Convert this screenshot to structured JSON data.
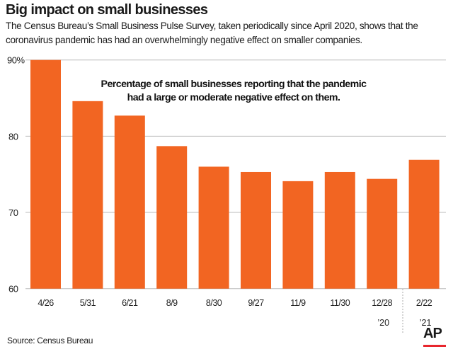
{
  "title": "Big impact on small businesses",
  "subtitle": "The Census Bureau’s Small Business Pulse Survey, taken periodically since April 2020, shows that the coronavirus pandemic has had an overwhelmingly negative effect on smaller companies.",
  "source": "Source: Census Bureau",
  "logo": "AP",
  "colors": {
    "bar": "#f26522",
    "grid": "#bbbbbb",
    "logo_accent": "#e8262d"
  },
  "chart_data": {
    "type": "bar",
    "annotation": "Percentage of small businesses reporting that the pandemic had a large or moderate negative effect on them.",
    "annotation_lines": [
      "Percentage of small businesses reporting that the pandemic",
      "had a large or moderate negative effect on them."
    ],
    "categories": [
      "4/26",
      "5/31",
      "6/21",
      "8/9",
      "8/30",
      "9/27",
      "11/9",
      "11/30",
      "12/28",
      "2/22"
    ],
    "year_labels": [
      {
        "after_category": "12/28",
        "label": "’20"
      },
      {
        "after_category": "2/22",
        "label": "’21"
      }
    ],
    "values": [
      90.0,
      84.6,
      82.7,
      78.7,
      76.0,
      75.3,
      74.1,
      75.3,
      74.4,
      76.9
    ],
    "ylim": [
      60,
      90
    ],
    "yticks": [
      60,
      70,
      80,
      90
    ],
    "ytick_labels": [
      "60",
      "70",
      "80",
      "90%"
    ],
    "grid": true,
    "xlabel": "",
    "ylabel": ""
  }
}
